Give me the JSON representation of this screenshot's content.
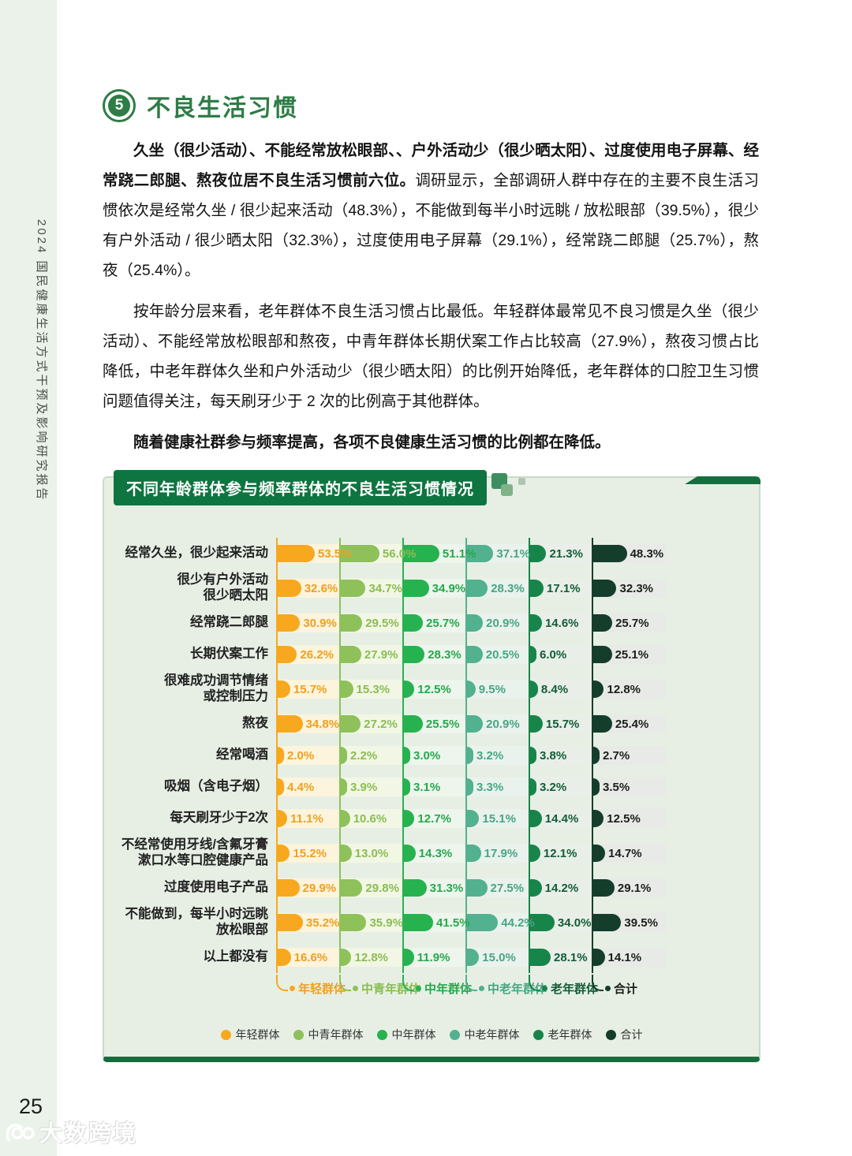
{
  "page": {
    "number": "25",
    "watermark_text": "大数跨境"
  },
  "sidebar": {
    "report_title": "2024 国民健康生活方式干预及影响研究报告"
  },
  "section": {
    "number": "5",
    "title": "不良生活习惯"
  },
  "paragraphs": {
    "p1_bold": "久坐（很少活动）、不能经常放松眼部、、户外活动少（很少晒太阳）、过度使用电子屏幕、经常跷二郎腿、熬夜位居不良生活习惯前六位。",
    "p1_rest": "调研显示，全部调研人群中存在的主要不良生活习惯依次是经常久坐 / 很少起来活动（48.3%），不能做到每半小时远眺 / 放松眼部（39.5%），很少有户外活动 / 很少晒太阳（32.3%），过度使用电子屏幕（29.1%），经常跷二郎腿（25.7%），熬夜（25.4%）。",
    "p2": "按年龄分层来看，老年群体不良生活习惯占比最低。年轻群体最常见不良习惯是久坐（很少活动）、不能经常放松眼部和熬夜，中青年群体长期伏案工作占比较高（27.9%），熬夜习惯占比降低，中老年群体久坐和户外活动少（很少晒太阳）的比例开始降低，老年群体的口腔卫生习惯问题值得关注，每天刷牙少于 2 次的比例高于其他群体。",
    "p3_bold": "随着健康社群参与频率提高，各项不良健康生活习惯的比例都在降低。"
  },
  "chart_data": {
    "type": "bar",
    "title": "不同年龄群体参与频率群体的不良生活习惯情况",
    "unit": "%",
    "legend_position": "bottom",
    "categories": [
      "经常久坐，很少起来活动",
      "很少有户外活动\n很少晒太阳",
      "经常跷二郎腿",
      "长期伏案工作",
      "很难成功调节情绪\n或控制压力",
      "熬夜",
      "经常喝酒",
      "吸烟（含电子烟）",
      "每天刷牙少于2次",
      "不经常使用牙线/含氟牙膏\n漱口水等口腔健康产品",
      "过度使用电子产品",
      "不能做到，每半小时远眺\n放松眼部",
      "以上都没有"
    ],
    "series": [
      {
        "name": "年轻群体",
        "color": "#F7A81F",
        "label_color": "#EFA01F",
        "track": "#FCF4DC",
        "values": [
          53.5,
          32.6,
          30.9,
          26.2,
          15.7,
          34.8,
          2.0,
          4.4,
          11.1,
          15.2,
          29.9,
          35.2,
          16.6
        ]
      },
      {
        "name": "中青年群体",
        "color": "#8EC15A",
        "label_color": "#8ABD52",
        "track": "#F2F7E5",
        "values": [
          56.0,
          34.7,
          29.5,
          27.9,
          15.3,
          27.2,
          2.2,
          3.9,
          10.6,
          13.0,
          29.8,
          35.9,
          12.8
        ]
      },
      {
        "name": "中年群体",
        "color": "#27B250",
        "label_color": "#27A84C",
        "track": "#EDF5ED",
        "values": [
          51.1,
          34.9,
          25.7,
          28.3,
          12.5,
          25.5,
          3.0,
          3.1,
          12.7,
          14.3,
          31.3,
          41.5,
          11.9
        ]
      },
      {
        "name": "中老年群体",
        "color": "#52B18E",
        "label_color": "#47A684",
        "track": "#EAF2ED",
        "values": [
          37.1,
          28.3,
          20.9,
          20.5,
          9.5,
          20.9,
          3.2,
          3.3,
          15.1,
          17.9,
          27.5,
          44.2,
          15.0
        ]
      },
      {
        "name": "老年群体",
        "color": "#17854A",
        "label_color": "#135C37",
        "track": "#E9EFE8",
        "values": [
          21.3,
          17.1,
          14.6,
          6.0,
          8.4,
          15.7,
          3.8,
          3.2,
          14.4,
          12.1,
          14.2,
          34.0,
          28.1
        ]
      },
      {
        "name": "合计",
        "color": "#153D2B",
        "label_color": "#1B1F1C",
        "track": "#E7EAE6",
        "values": [
          48.3,
          32.3,
          25.7,
          25.1,
          12.8,
          25.4,
          2.7,
          3.5,
          12.5,
          14.7,
          29.1,
          39.5,
          14.1
        ]
      }
    ]
  }
}
